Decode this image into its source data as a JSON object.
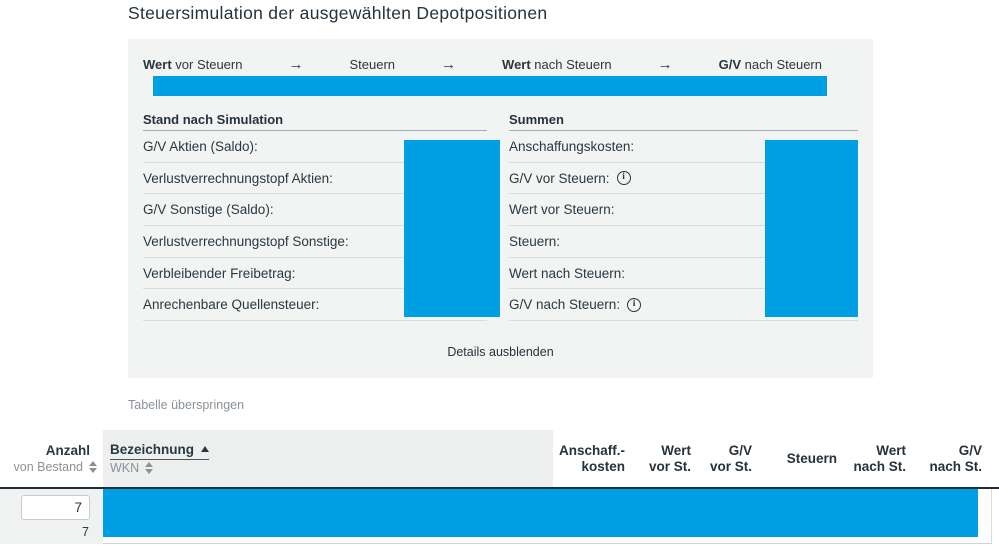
{
  "title": "Steuersimulation der ausgewählten Depotpositionen",
  "panel": {
    "flow": {
      "arrow": "→",
      "steps": [
        {
          "bold": "Wert",
          "rest": " vor Steuern"
        },
        {
          "bold": "",
          "rest": "Steuern"
        },
        {
          "bold": "Wert",
          "rest": " nach Steuern"
        },
        {
          "bold": "G/V",
          "rest": " nach Steuern"
        }
      ]
    },
    "stand_section": {
      "title": "Stand nach Simulation",
      "rows": [
        {
          "label": "G/V Aktien (Saldo):"
        },
        {
          "label": "Verlustverrechnungstopf Aktien:"
        },
        {
          "label": "G/V Sonstige (Saldo):"
        },
        {
          "label": "Verlustverrechnungstopf Sonstige:"
        },
        {
          "label": "Verbleibender Freibetrag:"
        },
        {
          "label": "Anrechenbare Quellensteuer:"
        }
      ]
    },
    "summen_section": {
      "title": "Summen",
      "rows": [
        {
          "label": "Anschaffungskosten:"
        },
        {
          "label": "G/V vor Steuern:"
        },
        {
          "label": "Wert vor Steuern:"
        },
        {
          "label": "Steuern:"
        },
        {
          "label": "Wert nach Steuern:"
        },
        {
          "label": "G/V nach Steuern:"
        }
      ]
    },
    "details_toggle_label": "Details ausblenden"
  },
  "skip_table_label": "Tabelle überspringen",
  "table": {
    "header": {
      "anzahl": "Anzahl",
      "anzahl_sub": "von Bestand",
      "bezeichnung": "Bezeichnung",
      "bezeichnung_sub": "WKN",
      "cols": [
        {
          "l1": "Anschaff.-",
          "l2": "kosten"
        },
        {
          "l1": "Wert",
          "l2": "vor St."
        },
        {
          "l1": "G/V",
          "l2": "vor St."
        },
        {
          "l1": "Steuern"
        },
        {
          "l1": "Wert",
          "l2": "nach St."
        },
        {
          "l1": "G/V",
          "l2": "nach St."
        }
      ]
    },
    "row": {
      "anzahl_value": "7",
      "anzahl_bestand": "7"
    }
  },
  "colors": {
    "accent_blue": "#009fe3"
  }
}
